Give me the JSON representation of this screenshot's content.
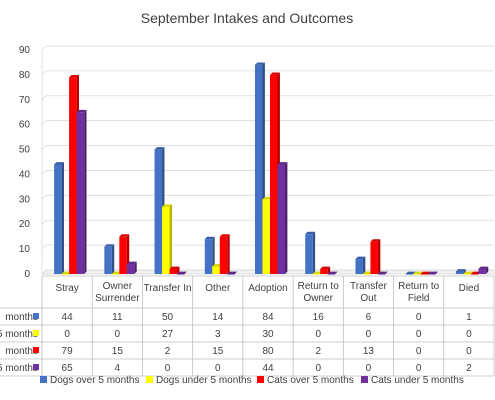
{
  "chart_data": {
    "type": "bar",
    "title": "September Intakes and Outcomes",
    "ylim": [
      0,
      90
    ],
    "yticks": [
      0,
      10,
      20,
      30,
      40,
      50,
      60,
      70,
      80,
      90
    ],
    "grid": true,
    "legend_position": "bottom",
    "categories": [
      [
        "Stray"
      ],
      [
        "Owner",
        "Surrender"
      ],
      [
        "Transfer In"
      ],
      [
        "Other"
      ],
      [
        "Adoption"
      ],
      [
        "Return to",
        "Owner"
      ],
      [
        "Transfer",
        "Out"
      ],
      [
        "Return to",
        "Field"
      ],
      [
        "Died"
      ]
    ],
    "series": [
      {
        "name": "Dogs over 5 months",
        "row_label": "months",
        "color": "#4472C4",
        "values": [
          44,
          11,
          50,
          14,
          84,
          16,
          6,
          0,
          1
        ]
      },
      {
        "name": "Dogs under 5 months",
        "row_label": "5 months",
        "color": "#FFFF00",
        "values": [
          0,
          0,
          27,
          3,
          30,
          0,
          0,
          0,
          0
        ]
      },
      {
        "name": "Cats over 5 months",
        "row_label": "months",
        "color": "#FF0000",
        "values": [
          79,
          15,
          2,
          15,
          80,
          2,
          13,
          0,
          0
        ]
      },
      {
        "name": "Cats under 5 months",
        "row_label": "5 months",
        "color": "#7030A0",
        "values": [
          65,
          4,
          0,
          0,
          44,
          0,
          0,
          0,
          2
        ]
      }
    ]
  }
}
